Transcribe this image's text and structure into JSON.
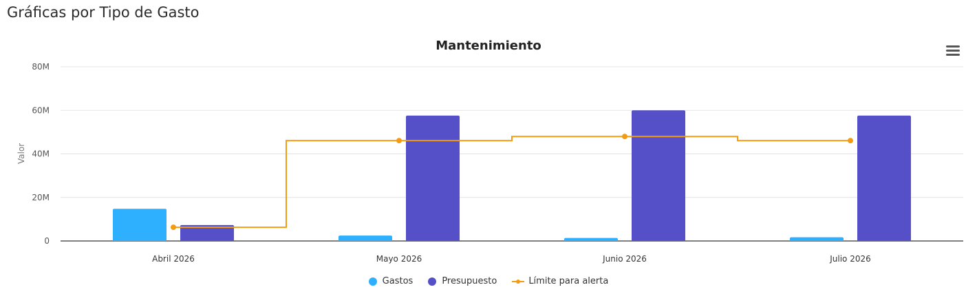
{
  "page": {
    "title": "Gráficas por Tipo de Gasto"
  },
  "icons": {
    "menu": "hamburger-menu-icon"
  },
  "chart_data": {
    "type": "bar",
    "title": "Mantenimiento",
    "ylabel": "Valor",
    "xlabel": "",
    "ylim": [
      0,
      80000000
    ],
    "yticks": [
      0,
      20000000,
      40000000,
      60000000,
      80000000
    ],
    "ytick_labels": [
      "0",
      "20M",
      "40M",
      "60M",
      "80M"
    ],
    "categories": [
      "Abril 2026",
      "Mayo 2026",
      "Junio 2026",
      "Julio 2026"
    ],
    "grid": true,
    "legend_position": "bottom-center",
    "series": [
      {
        "name": "Gastos",
        "type": "bar",
        "color": "#2eb0ff",
        "values": [
          14800000,
          2500000,
          1400000,
          1700000
        ]
      },
      {
        "name": "Presupuesto",
        "type": "bar",
        "color": "#5550c8",
        "values": [
          7300000,
          57600000,
          60000000,
          57600000
        ]
      },
      {
        "name": "Límite para alerta",
        "type": "step-line",
        "color": "#f39c12",
        "values": [
          6300000,
          46100000,
          48000000,
          46100000
        ]
      }
    ]
  }
}
